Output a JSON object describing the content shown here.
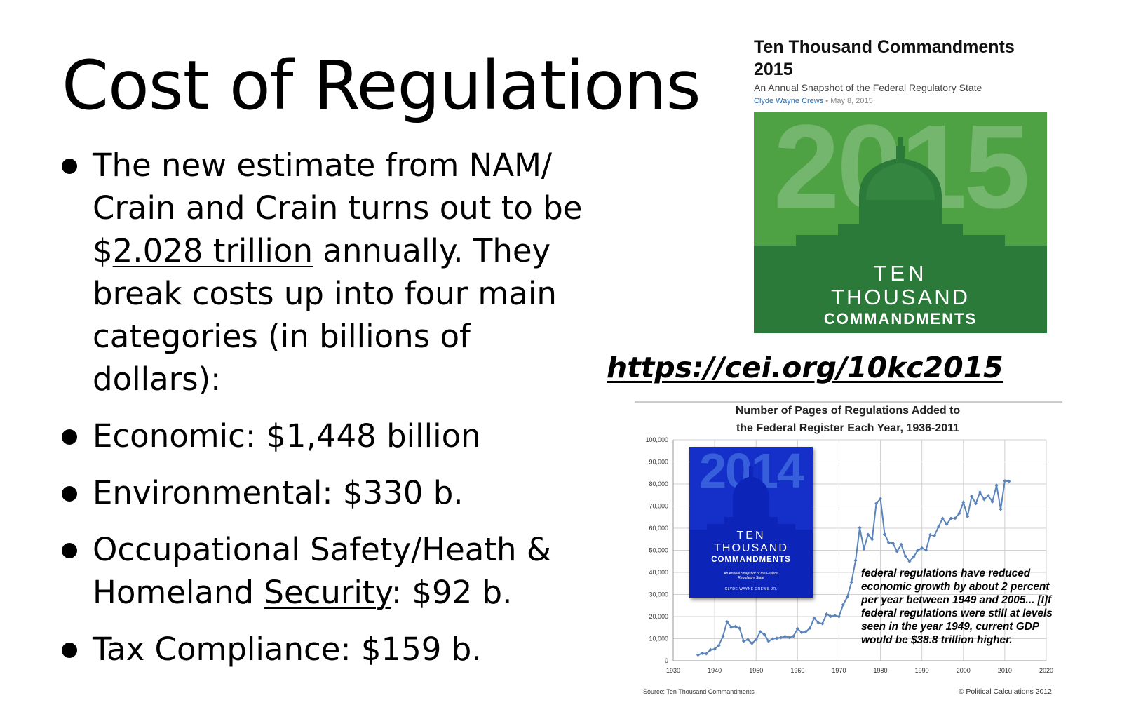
{
  "slide": {
    "title": "Cost of Regulations",
    "bullets": [
      {
        "pre": "The new estimate from NAM/ Crain and Crain turns out to be $",
        "underlined": "2.028 trillion",
        "post": " annually. They break costs up into four main categories (in billions of dollars):"
      },
      {
        "pre": "Economic: $1,448 billion",
        "underlined": "",
        "post": ""
      },
      {
        "pre": "Environmental: $330 b.",
        "underlined": "",
        "post": ""
      },
      {
        "pre": "Occupational Safety/Heath & Homeland ",
        "underlined": "Security",
        "post": ": $92 b."
      },
      {
        "pre": "Tax Compliance: $159 b.",
        "underlined": "",
        "post": ""
      }
    ],
    "url": "https://cei.org/10kc2015"
  },
  "report": {
    "title_line1": "Ten Thousand Commandments",
    "title_line2": "2015",
    "subtitle": "An Annual Snapshot of the Federal Regulatory State",
    "author": "Clyde Wayne Crews",
    "date": "• May 8, 2015",
    "cover": {
      "year": "2015",
      "line1": "TEN",
      "line2": "THOUSAND",
      "line3": "COMMANDMENTS",
      "colors": {
        "light": "#4ea244",
        "dark": "#2b7a3a",
        "dome": "#3b8f45"
      }
    }
  },
  "book_2014": {
    "year": "2014",
    "line1": "TEN",
    "line2": "THOUSAND",
    "line3": "COMMANDMENTS",
    "subtitle": "An Annual Snapshot of the Federal Regulatory State",
    "author": "CLYDE WAYNE CREWS JR.",
    "color": "#1530c8"
  },
  "annotation": "federal regulations have reduced economic growth by about 2 percent per year between 1949 and 2005... [I]f federal regulations were still at levels seen in the year 1949, current GDP would be $38.8 trillion higher.",
  "chart_data": {
    "type": "line",
    "title_line1": "Number of Pages of Regulations Added to",
    "title_line2": "the Federal Register Each Year, 1936-2011",
    "xlim": [
      1930,
      2020
    ],
    "ylim": [
      0,
      100000
    ],
    "x_ticks": [
      1930,
      1940,
      1950,
      1960,
      1970,
      1980,
      1990,
      2000,
      2010,
      2020
    ],
    "y_ticks": [
      0,
      10000,
      20000,
      30000,
      40000,
      50000,
      60000,
      70000,
      80000,
      90000,
      100000
    ],
    "y_tick_labels": [
      "0",
      "10,000",
      "20,000",
      "30,000",
      "40,000",
      "50,000",
      "60,000",
      "70,000",
      "80,000",
      "90,000",
      "100,000"
    ],
    "grid": true,
    "line_color": "#5b84bb",
    "source": "Source: Ten Thousand Commandments",
    "credit": "© Political Calculations 2012",
    "x": [
      1936,
      1937,
      1938,
      1939,
      1940,
      1941,
      1942,
      1943,
      1944,
      1945,
      1946,
      1947,
      1948,
      1949,
      1950,
      1951,
      1952,
      1953,
      1954,
      1955,
      1956,
      1957,
      1958,
      1959,
      1960,
      1961,
      1962,
      1963,
      1964,
      1965,
      1966,
      1967,
      1968,
      1969,
      1970,
      1971,
      1972,
      1973,
      1974,
      1975,
      1976,
      1977,
      1978,
      1979,
      1980,
      1981,
      1982,
      1983,
      1984,
      1985,
      1986,
      1987,
      1988,
      1989,
      1990,
      1991,
      1992,
      1993,
      1994,
      1995,
      1996,
      1997,
      1998,
      1999,
      2000,
      2001,
      2002,
      2003,
      2004,
      2005,
      2006,
      2007,
      2008,
      2009,
      2010,
      2011
    ],
    "y": [
      2600,
      3400,
      3200,
      5000,
      5300,
      6900,
      11100,
      17600,
      15200,
      15500,
      14700,
      8900,
      9600,
      7900,
      9600,
      13100,
      11900,
      8900,
      9900,
      10200,
      10500,
      11000,
      10600,
      11100,
      14500,
      12800,
      13200,
      14800,
      19300,
      17200,
      16800,
      21100,
      20100,
      20500,
      20000,
      25400,
      28900,
      35600,
      45400,
      60200,
      50600,
      57100,
      55000,
      71200,
      73300,
      57300,
      53500,
      53200,
      49500,
      52600,
      47400,
      45000,
      47000,
      50000,
      51000,
      50100,
      57000,
      56600,
      60600,
      64400,
      61800,
      64400,
      64500,
      66700,
      71700,
      65300,
      74400,
      71200,
      76300,
      73100,
      74700,
      72000,
      79400,
      68600,
      81400,
      81200
    ]
  }
}
